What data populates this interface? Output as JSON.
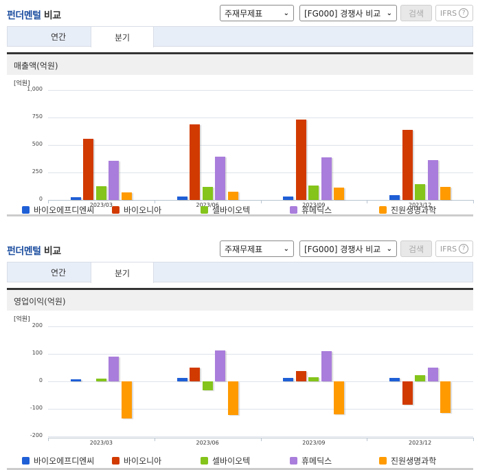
{
  "sections": [
    {
      "title_blue": "펀더멘털",
      "title_rest": " 비교",
      "select1": "주재무제표",
      "select2": "[FG000] 경쟁사 비교",
      "search_label": "검색",
      "ifrs_label": "IFRS",
      "help_glyph": "?",
      "tabs": [
        {
          "label": "연간",
          "active": false
        },
        {
          "label": "분기",
          "active": true
        }
      ],
      "chart_title": "매출액(억원)",
      "unit": "[억원]"
    },
    {
      "title_blue": "펀더멘털",
      "title_rest": " 비교",
      "select1": "주재무제표",
      "select2": "[FG000] 경쟁사 비교",
      "search_label": "검색",
      "ifrs_label": "IFRS",
      "help_glyph": "?",
      "tabs": [
        {
          "label": "연간",
          "active": false
        },
        {
          "label": "분기",
          "active": true
        }
      ],
      "chart_title": "영업이익(억원)",
      "unit": "[억원]"
    }
  ],
  "colors": {
    "바이오에프디엔씨": "#1f5fd6",
    "바이오니아": "#d13a00",
    "셀바이오텍": "#84c41b",
    "휴메딕스": "#a97ddb",
    "진원생명과학": "#ff9a00"
  },
  "chart_data": [
    {
      "type": "bar",
      "title": "매출액(억원)",
      "ylabel": "[억원]",
      "xlabel": "",
      "categories": [
        "2023/03",
        "2023/06",
        "2023/09",
        "2023/12"
      ],
      "yticks": [
        "1,000",
        "750",
        "500",
        "250",
        "0"
      ],
      "ylim": [
        0,
        1000
      ],
      "grid": true,
      "legend_position": "bottom",
      "series": [
        {
          "name": "바이오에프디엔씨",
          "color": "#1f5fd6",
          "values": [
            25,
            30,
            30,
            45
          ]
        },
        {
          "name": "바이오니아",
          "color": "#d13a00",
          "values": [
            555,
            690,
            730,
            640
          ]
        },
        {
          "name": "셀바이오텍",
          "color": "#84c41b",
          "values": [
            125,
            120,
            130,
            145
          ]
        },
        {
          "name": "휴메딕스",
          "color": "#a97ddb",
          "values": [
            355,
            395,
            390,
            365
          ]
        },
        {
          "name": "진원생명과학",
          "color": "#ff9a00",
          "values": [
            70,
            75,
            115,
            120
          ]
        }
      ]
    },
    {
      "type": "bar",
      "title": "영업이익(억원)",
      "ylabel": "[억원]",
      "xlabel": "",
      "categories": [
        "2023/03",
        "2023/06",
        "2023/09",
        "2023/12"
      ],
      "yticks": [
        "200",
        "100",
        "0",
        "-100",
        "-200"
      ],
      "ylim": [
        -200,
        200
      ],
      "grid": true,
      "legend_position": "bottom",
      "series": [
        {
          "name": "바이오에프디엔씨",
          "color": "#1f5fd6",
          "values": [
            7,
            12,
            12,
            13
          ]
        },
        {
          "name": "바이오니아",
          "color": "#d13a00",
          "values": [
            0,
            50,
            38,
            -85
          ]
        },
        {
          "name": "셀바이오텍",
          "color": "#84c41b",
          "values": [
            10,
            -33,
            15,
            22
          ]
        },
        {
          "name": "휴메딕스",
          "color": "#a97ddb",
          "values": [
            90,
            113,
            110,
            50
          ]
        },
        {
          "name": "진원생명과학",
          "color": "#ff9a00",
          "values": [
            -135,
            -122,
            -120,
            -115
          ]
        }
      ]
    }
  ]
}
